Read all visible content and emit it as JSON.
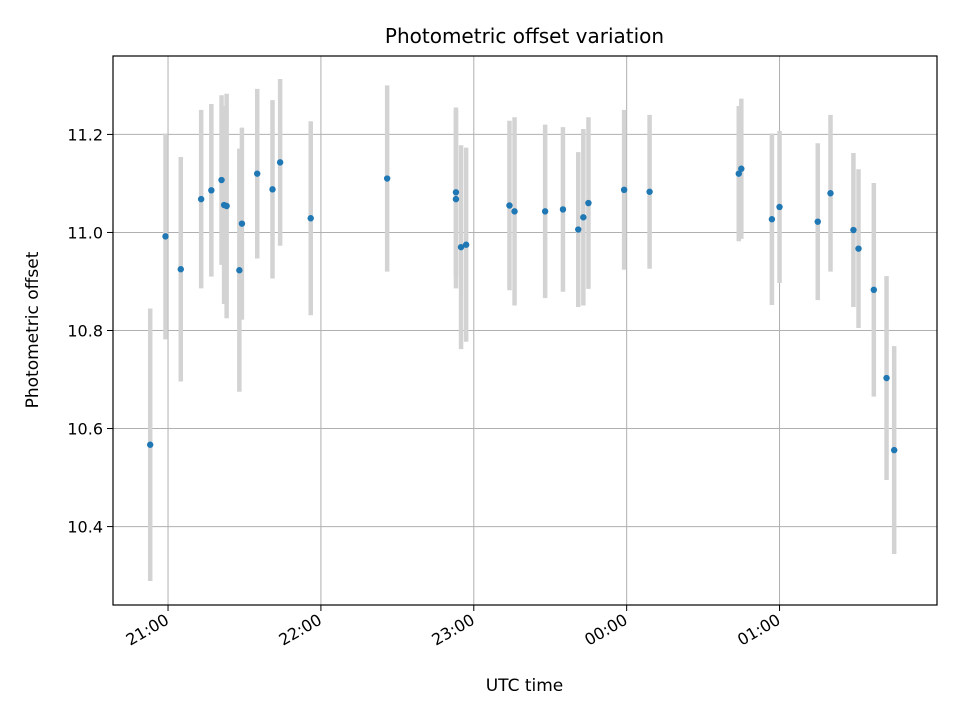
{
  "chart_data": {
    "type": "scatter",
    "title": "Photometric offset variation",
    "xlabel": "UTC time",
    "ylabel": "Photometric offset",
    "x_axis": {
      "kind": "time",
      "range_hours": [
        20.64,
        26.03
      ],
      "ticks": [
        {
          "hour": 21,
          "label": "21:00"
        },
        {
          "hour": 22,
          "label": "22:00"
        },
        {
          "hour": 23,
          "label": "23:00"
        },
        {
          "hour": 24,
          "label": "00:00"
        },
        {
          "hour": 25,
          "label": "01:00"
        }
      ]
    },
    "y_axis": {
      "range": [
        10.24,
        11.36
      ],
      "ticks": [
        {
          "value": 10.4,
          "label": "10.4"
        },
        {
          "value": 10.6,
          "label": "10.6"
        },
        {
          "value": 10.8,
          "label": "10.8"
        },
        {
          "value": 11.0,
          "label": "11.0"
        },
        {
          "value": 11.2,
          "label": "11.2"
        }
      ]
    },
    "grid": true,
    "marker_color": "#1f77b4",
    "errorbar_color": "#d3d3d3",
    "points": [
      {
        "x": "20:53",
        "y": 10.567,
        "err": 0.278
      },
      {
        "x": "20:59",
        "y": 10.992,
        "err": 0.21
      },
      {
        "x": "21:05",
        "y": 10.925,
        "err": 0.229
      },
      {
        "x": "21:13",
        "y": 11.068,
        "err": 0.182
      },
      {
        "x": "21:17",
        "y": 11.086,
        "err": 0.176
      },
      {
        "x": "21:21",
        "y": 11.107,
        "err": 0.173
      },
      {
        "x": "21:22",
        "y": 11.056,
        "err": 0.202
      },
      {
        "x": "21:23",
        "y": 11.054,
        "err": 0.229
      },
      {
        "x": "21:28",
        "y": 10.923,
        "err": 0.248
      },
      {
        "x": "21:29",
        "y": 11.018,
        "err": 0.196
      },
      {
        "x": "21:35",
        "y": 11.12,
        "err": 0.173
      },
      {
        "x": "21:41",
        "y": 11.088,
        "err": 0.182
      },
      {
        "x": "21:44",
        "y": 11.143,
        "err": 0.17
      },
      {
        "x": "21:56",
        "y": 11.029,
        "err": 0.198
      },
      {
        "x": "22:26",
        "y": 11.11,
        "err": 0.19
      },
      {
        "x": "22:53",
        "y": 11.082,
        "err": 0.173
      },
      {
        "x": "22:53",
        "y": 11.068,
        "err": 0.182
      },
      {
        "x": "22:55",
        "y": 10.97,
        "err": 0.208
      },
      {
        "x": "22:57",
        "y": 10.975,
        "err": 0.198
      },
      {
        "x": "23:14",
        "y": 11.055,
        "err": 0.173
      },
      {
        "x": "23:16",
        "y": 11.043,
        "err": 0.192
      },
      {
        "x": "23:28",
        "y": 11.043,
        "err": 0.177
      },
      {
        "x": "23:35",
        "y": 11.047,
        "err": 0.168
      },
      {
        "x": "23:41",
        "y": 11.006,
        "err": 0.158
      },
      {
        "x": "23:43",
        "y": 11.031,
        "err": 0.18
      },
      {
        "x": "23:45",
        "y": 11.06,
        "err": 0.175
      },
      {
        "x": "23:59",
        "y": 11.087,
        "err": 0.163
      },
      {
        "x": "00:09",
        "y": 11.083,
        "err": 0.157
      },
      {
        "x": "00:44",
        "y": 11.12,
        "err": 0.138
      },
      {
        "x": "00:45",
        "y": 11.13,
        "err": 0.143
      },
      {
        "x": "00:57",
        "y": 11.027,
        "err": 0.175
      },
      {
        "x": "01:00",
        "y": 11.052,
        "err": 0.155
      },
      {
        "x": "01:15",
        "y": 11.022,
        "err": 0.16
      },
      {
        "x": "01:20",
        "y": 11.08,
        "err": 0.16
      },
      {
        "x": "01:29",
        "y": 11.005,
        "err": 0.157
      },
      {
        "x": "01:31",
        "y": 10.967,
        "err": 0.162
      },
      {
        "x": "01:37",
        "y": 10.883,
        "err": 0.218
      },
      {
        "x": "01:42",
        "y": 10.703,
        "err": 0.208
      },
      {
        "x": "01:45",
        "y": 10.556,
        "err": 0.212
      }
    ]
  }
}
